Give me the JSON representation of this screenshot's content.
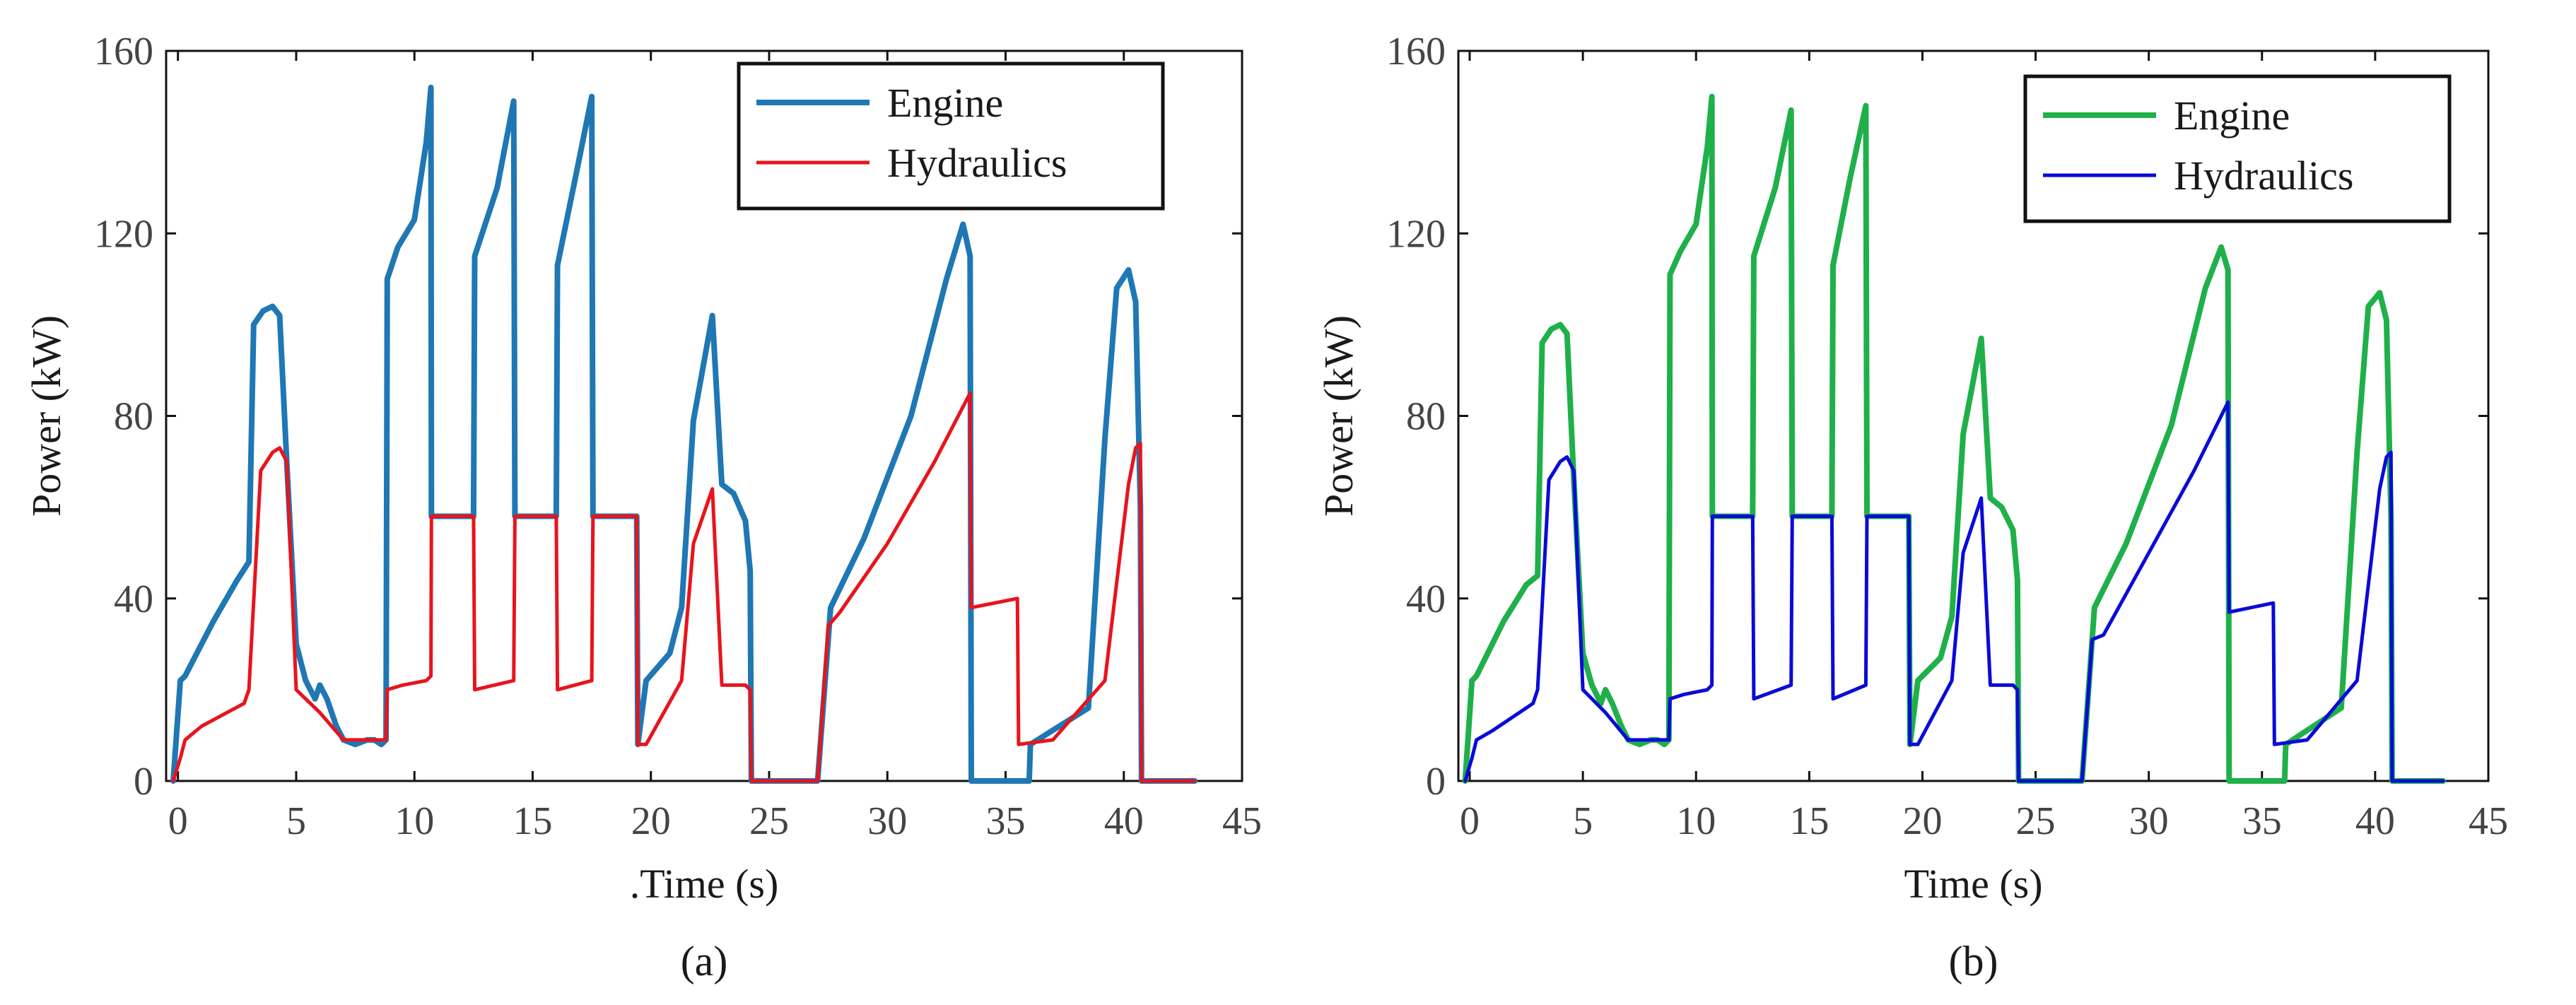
{
  "chart_data": [
    {
      "type": "line",
      "panel": "(a)",
      "xlabel": "Time (s)",
      "xlabel_prefix": ".",
      "ylabel": "Power (kW)",
      "xlim": [
        -0.5,
        45
      ],
      "ylim": [
        0,
        160
      ],
      "xticks": [
        0,
        5,
        10,
        15,
        20,
        25,
        30,
        35,
        40,
        45
      ],
      "yticks": [
        0,
        40,
        80,
        120,
        160
      ],
      "legend_position": "top-right",
      "series": [
        {
          "name": "Engine",
          "color": "#1f77b4",
          "x": [
            -0.2,
            0.1,
            0.3,
            0.8,
            1.5,
            2.5,
            3,
            3.2,
            3.6,
            4,
            4.3,
            4.6,
            5,
            5.4,
            5.8,
            6,
            6.3,
            6.7,
            7,
            7.5,
            8,
            8.3,
            8.6,
            8.8,
            8.85,
            9.3,
            10,
            10.5,
            10.7,
            10.72,
            12.5,
            12.55,
            13.5,
            14.2,
            14.25,
            16,
            16.05,
            16.8,
            17.5,
            17.55,
            19.4,
            19.45,
            19.8,
            20.8,
            21.3,
            21.8,
            22.6,
            23,
            23.5,
            24,
            24.2,
            24.25,
            27,
            27.05,
            27.6,
            29,
            31,
            32.5,
            33.2,
            33.5,
            33.55,
            36,
            36.05,
            38.5,
            39.2,
            39.7,
            40.2,
            40.5,
            40.7,
            40.75,
            43
          ],
          "y": [
            0,
            22,
            23,
            28,
            35,
            44,
            48,
            100,
            103,
            104,
            102,
            70,
            30,
            22,
            18,
            21,
            18,
            12,
            9,
            8,
            9,
            9,
            8,
            9,
            110,
            117,
            123,
            140,
            152,
            58,
            58,
            115,
            130,
            149,
            58,
            58,
            113,
            132,
            150,
            58,
            58,
            8,
            22,
            28,
            38,
            79,
            102,
            65,
            63,
            57,
            46,
            0,
            0,
            0,
            38,
            53,
            80,
            110,
            122,
            115,
            0,
            0,
            8,
            16,
            75,
            108,
            112,
            105,
            60,
            0,
            0
          ]
        },
        {
          "name": "Hydraulics",
          "color": "#e8141c",
          "x": [
            -0.2,
            0.1,
            0.3,
            1,
            2.8,
            3,
            3.5,
            4,
            4.3,
            4.6,
            5,
            6,
            7,
            8,
            8.8,
            8.85,
            9.5,
            10.5,
            10.7,
            10.72,
            12.5,
            12.55,
            14.2,
            14.25,
            16,
            16.05,
            17.5,
            17.55,
            19.4,
            19.45,
            19.8,
            21.3,
            21.8,
            22.6,
            23,
            24,
            24.2,
            24.25,
            27,
            27.05,
            27.5,
            28,
            30,
            32,
            33.5,
            33.55,
            35.5,
            35.55,
            37,
            39.2,
            40.2,
            40.5,
            40.7,
            40.75,
            43
          ],
          "y": [
            0,
            5,
            9,
            12,
            17,
            20,
            68,
            72,
            73,
            70,
            20,
            15,
            9,
            9,
            9,
            20,
            21,
            22,
            23,
            58,
            58,
            20,
            22,
            58,
            58,
            20,
            22,
            58,
            58,
            8,
            8,
            22,
            52,
            64,
            21,
            21,
            20,
            0,
            0,
            0,
            34,
            37,
            52,
            70,
            85,
            38,
            40,
            8,
            9,
            22,
            65,
            73,
            74,
            0,
            0
          ]
        }
      ]
    },
    {
      "type": "line",
      "panel": "(b)",
      "xlabel": "Time (s)",
      "ylabel": "Power (kW)",
      "xlim": [
        -0.5,
        45
      ],
      "ylim": [
        0,
        160
      ],
      "xticks": [
        0,
        5,
        10,
        15,
        20,
        25,
        30,
        35,
        40,
        45
      ],
      "yticks": [
        0,
        40,
        80,
        120,
        160
      ],
      "legend_position": "top-right",
      "series": [
        {
          "name": "Engine",
          "color": "#1fb04a",
          "x": [
            -0.2,
            0.1,
            0.3,
            0.8,
            1.5,
            2.5,
            3,
            3.2,
            3.6,
            4,
            4.3,
            4.6,
            5,
            5.4,
            5.8,
            6,
            6.3,
            6.7,
            7,
            7.5,
            8,
            8.3,
            8.6,
            8.8,
            8.85,
            9.3,
            10,
            10.5,
            10.7,
            10.72,
            12.5,
            12.55,
            13.5,
            14.2,
            14.25,
            16,
            16.05,
            16.8,
            17.5,
            17.55,
            19.4,
            19.45,
            19.8,
            20.8,
            21.3,
            21.8,
            22.6,
            23,
            23.5,
            24,
            24.2,
            24.25,
            27,
            27.05,
            27.6,
            29,
            31,
            32.5,
            33.2,
            33.5,
            33.55,
            36,
            36.05,
            38.5,
            39.2,
            39.7,
            40.2,
            40.5,
            40.7,
            40.75,
            43
          ],
          "y": [
            0,
            22,
            23,
            28,
            35,
            43,
            45,
            96,
            99,
            100,
            98,
            66,
            28,
            21,
            17,
            20,
            17,
            12,
            9,
            8,
            9,
            9,
            8,
            9,
            111,
            116,
            122,
            139,
            150,
            58,
            58,
            115,
            130,
            147,
            58,
            58,
            113,
            132,
            148,
            58,
            58,
            8,
            22,
            27,
            36,
            76,
            97,
            62,
            60,
            55,
            44,
            0,
            0,
            0,
            38,
            52,
            78,
            108,
            117,
            112,
            0,
            0,
            8,
            16,
            72,
            104,
            107,
            101,
            58,
            0,
            0
          ]
        },
        {
          "name": "Hydraulics",
          "color": "#0a0ad8",
          "x": [
            -0.2,
            0.1,
            0.3,
            1,
            2.8,
            3,
            3.5,
            4,
            4.3,
            4.6,
            5,
            6,
            7,
            8,
            8.8,
            8.85,
            9.5,
            10.5,
            10.7,
            10.72,
            12.5,
            12.55,
            14.2,
            14.25,
            16,
            16.05,
            17.5,
            17.55,
            19.4,
            19.45,
            19.8,
            21.3,
            21.8,
            22.6,
            23,
            24,
            24.2,
            24.25,
            27,
            27.05,
            27.5,
            28,
            30,
            32,
            33.5,
            33.55,
            35.5,
            35.55,
            37,
            39.2,
            40.2,
            40.5,
            40.7,
            40.75,
            43
          ],
          "y": [
            0,
            5,
            9,
            11,
            17,
            20,
            66,
            70,
            71,
            68,
            20,
            15,
            9,
            9,
            9,
            18,
            19,
            20,
            21,
            58,
            58,
            18,
            21,
            58,
            58,
            18,
            21,
            58,
            58,
            8,
            8,
            22,
            50,
            62,
            21,
            21,
            20,
            0,
            0,
            0,
            31,
            32,
            50,
            68,
            83,
            37,
            39,
            8,
            9,
            22,
            64,
            71,
            72,
            0,
            0
          ]
        }
      ]
    }
  ]
}
